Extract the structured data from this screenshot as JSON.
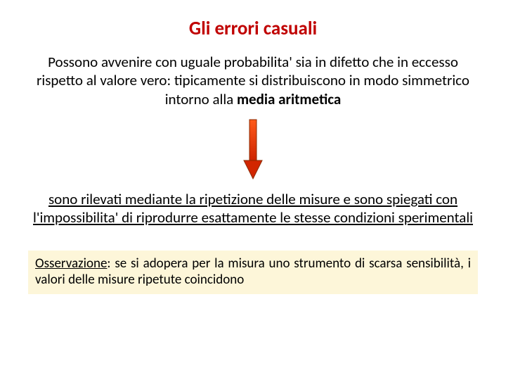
{
  "title": {
    "text": "Gli errori casuali",
    "color": "#c00000",
    "fontsize": 27
  },
  "paragraph1": {
    "pre": "Possono avvenire con uguale probabilita' sia in difetto che in eccesso rispetto al valore vero: tipicamente si distribuiscono in modo simmetrico intorno alla ",
    "bold": "media aritmetica",
    "fontsize": 21,
    "color": "#000000"
  },
  "arrow": {
    "width": 30,
    "height": 88,
    "shaft_fill": "#ff3300",
    "shaft_stroke": "#8b2a00",
    "head_fill": "#d22600",
    "gradient_top": "#ff5a1a",
    "gradient_bottom": "#cc2200"
  },
  "paragraph2": {
    "text": "sono rilevati mediante la ripetizione delle misure e sono spiegati con l'impossibilita' di riprodurre esattamente le stesse condizioni sperimentali",
    "fontsize": 21,
    "color": "#000000"
  },
  "note": {
    "label": "Osservazione",
    "text": ": se si adopera per la misura uno strumento di scarsa sensibilità, i valori delle misure ripetute coincidono",
    "fontsize": 19,
    "background": "#fdf6d9",
    "color": "#000000"
  }
}
